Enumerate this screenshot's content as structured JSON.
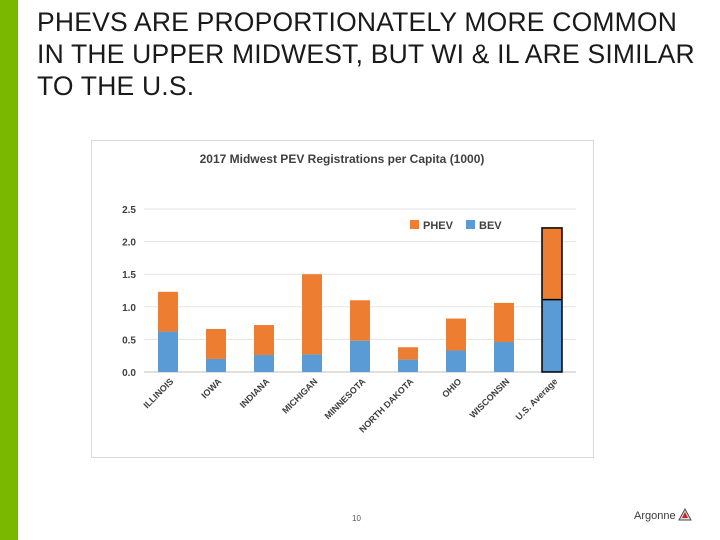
{
  "slide": {
    "title": "PHEVS ARE PROPORTIONATELY MORE COMMON IN THE UPPER MIDWEST, BUT WI & IL ARE SIMILAR TO THE U.S.",
    "page_number": "10",
    "logo_text": "Argonne",
    "accent_color": "#7ab800"
  },
  "chart_data": {
    "type": "bar",
    "stacked": true,
    "title": "2017  Midwest PEV Registrations per Capita (1000)",
    "categories": [
      "ILLINOIS",
      "IOWA",
      "INDIANA",
      "MICHIGAN",
      "MINNESOTA",
      "NORTH DAKOTA",
      "OHIO",
      "WISCONSIN",
      "U.S. Average"
    ],
    "series": [
      {
        "name": "BEV",
        "color": "#5b9bd5",
        "values": [
          0.62,
          0.2,
          0.26,
          0.27,
          0.48,
          0.19,
          0.33,
          0.46,
          1.11
        ]
      },
      {
        "name": "PHEV",
        "color": "#ed7d31",
        "values": [
          0.61,
          0.46,
          0.46,
          1.23,
          0.62,
          0.19,
          0.49,
          0.6,
          1.1
        ]
      }
    ],
    "yticks": [
      "0.0",
      "0.5",
      "1.0",
      "1.5",
      "2.0",
      "2.5"
    ],
    "ylim": [
      0,
      2.5
    ],
    "legend_position": "top-right",
    "grid": true,
    "highlight_category": "U.S. Average"
  }
}
